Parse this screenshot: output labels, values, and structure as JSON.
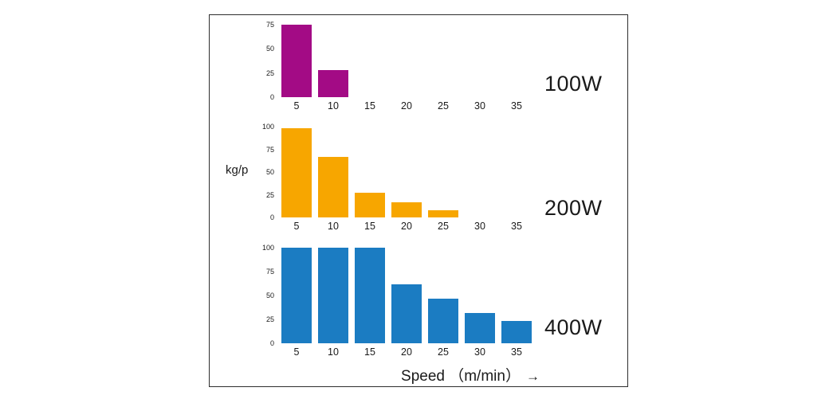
{
  "frame": {
    "border_color": "#2e2e2e",
    "background": "#ffffff"
  },
  "labels": {
    "y_axis": "kg/p",
    "x_axis": "Speed （m/min）",
    "x_axis_arrow": "→"
  },
  "chart_data": [
    {
      "type": "bar",
      "title": "100W",
      "color": "#a30b85",
      "categories": [
        5,
        10,
        15,
        20,
        25,
        30,
        35
      ],
      "values": [
        75,
        28,
        0,
        0,
        0,
        0,
        0
      ],
      "y_ticks": [
        0,
        25,
        50,
        75
      ],
      "ylim": [
        0,
        75
      ],
      "xlabel": "Speed （m/min）",
      "ylabel": "kg/p",
      "grid": false,
      "legend": "right-of-plot"
    },
    {
      "type": "bar",
      "title": "200W",
      "color": "#f7a600",
      "categories": [
        5,
        10,
        15,
        20,
        25,
        30,
        35
      ],
      "values": [
        98,
        67,
        27,
        17,
        8,
        0,
        0
      ],
      "y_ticks": [
        0,
        25,
        50,
        75,
        100
      ],
      "ylim": [
        0,
        100
      ],
      "xlabel": "Speed （m/min）",
      "ylabel": "kg/p",
      "grid": false,
      "legend": "right-of-plot"
    },
    {
      "type": "bar",
      "title": "400W",
      "color": "#1b7cc2",
      "categories": [
        5,
        10,
        15,
        20,
        25,
        30,
        35
      ],
      "values": [
        100,
        100,
        100,
        62,
        47,
        32,
        23
      ],
      "y_ticks": [
        0,
        25,
        50,
        75,
        100
      ],
      "ylim": [
        0,
        100
      ],
      "xlabel": "Speed （m/min）",
      "ylabel": "kg/p",
      "grid": false,
      "legend": "right-of-plot"
    }
  ]
}
